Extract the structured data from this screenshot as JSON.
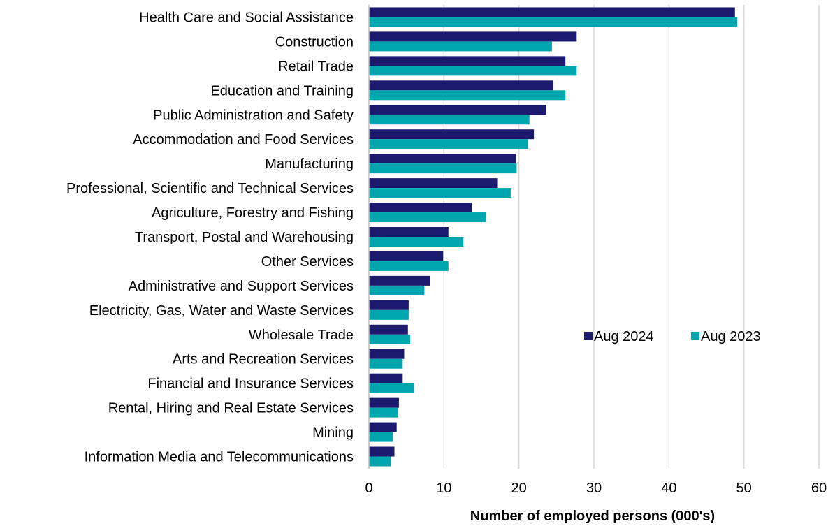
{
  "chart_data": {
    "type": "bar",
    "orientation": "horizontal",
    "categories": [
      "Health Care and Social Assistance",
      "Construction",
      "Retail Trade",
      "Education and Training",
      "Public Administration and Safety",
      "Accommodation and Food Services",
      "Manufacturing",
      "Professional, Scientific and Technical Services",
      "Agriculture, Forestry and Fishing",
      "Transport, Postal and Warehousing",
      "Other Services",
      "Administrative and Support Services",
      "Electricity, Gas, Water and Waste Services",
      "Wholesale Trade",
      "Arts and Recreation Services",
      "Financial and Insurance Services",
      "Rental, Hiring and Real Estate Services",
      "Mining",
      "Information Media and Telecommunications"
    ],
    "series": [
      {
        "name": "Aug 2024",
        "color": "#1b1a6e",
        "values": [
          48.8,
          27.7,
          26.2,
          24.6,
          23.6,
          22.0,
          19.6,
          17.1,
          13.7,
          10.6,
          9.9,
          8.2,
          5.3,
          5.2,
          4.7,
          4.5,
          4.0,
          3.7,
          3.4
        ]
      },
      {
        "name": "Aug 2023",
        "color": "#00a6ad",
        "values": [
          49.1,
          24.4,
          27.7,
          26.2,
          21.4,
          21.2,
          19.7,
          18.9,
          15.6,
          12.6,
          10.6,
          7.4,
          5.3,
          5.5,
          4.5,
          6.0,
          3.9,
          3.2,
          2.9
        ]
      }
    ],
    "xlabel": "Number of employed persons (000's)",
    "ylabel": "",
    "xlim": [
      0,
      60
    ],
    "xticks": [
      "0",
      "10",
      "20",
      "30",
      "40",
      "50",
      "60"
    ],
    "grid": true,
    "legend_position": "right"
  }
}
